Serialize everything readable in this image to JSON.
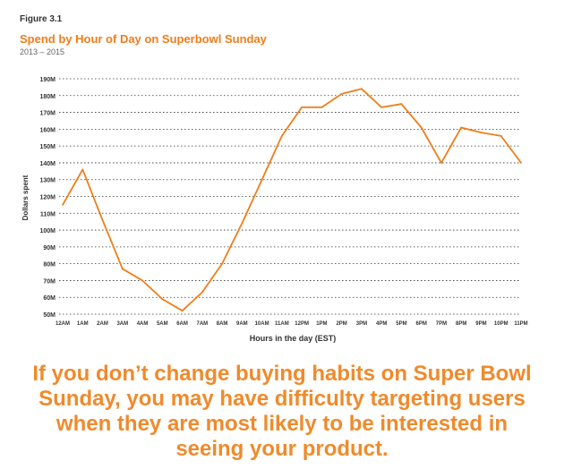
{
  "figure_label": "Figure 3.1",
  "callout_lines": [
    "If you don’t change buying habits on Super Bowl",
    "Sunday, you may have difficulty targeting users",
    "when they are most likely to be interested in",
    "seeing your product."
  ],
  "colors": {
    "accent": "#ef7d1a",
    "text": "#333333",
    "grid": "#333333"
  },
  "chart_data": {
    "type": "line",
    "title": "Spend by Hour of Day on Superbowl Sunday",
    "subtitle": "2013 – 2015",
    "xlabel": "Hours in the day (EST)",
    "ylabel": "Dollars spent",
    "categories": [
      "12AM",
      "1AM",
      "2AM",
      "3AM",
      "4AM",
      "5AM",
      "6AM",
      "7AM",
      "8AM",
      "9AM",
      "10AM",
      "11AM",
      "12PM",
      "1PM",
      "2PM",
      "3PM",
      "4PM",
      "5PM",
      "6PM",
      "7PM",
      "8PM",
      "9PM",
      "10PM",
      "11PM"
    ],
    "values": [
      115,
      136,
      106,
      77,
      70,
      59,
      52,
      63,
      80,
      104,
      130,
      156,
      173,
      173,
      181,
      184,
      173,
      175,
      161,
      140,
      161,
      158,
      156,
      140
    ],
    "ylim": [
      50,
      190
    ],
    "yticks": [
      50,
      60,
      70,
      80,
      90,
      100,
      110,
      120,
      130,
      140,
      150,
      160,
      170,
      180,
      190
    ],
    "ytick_labels": [
      "50M",
      "60M",
      "70M",
      "80M",
      "90M",
      "100M",
      "110M",
      "120M",
      "130M",
      "140M",
      "150M",
      "160M",
      "170M",
      "180M",
      "190M"
    ],
    "grid": "horizontal-dotted",
    "legend": "none"
  }
}
